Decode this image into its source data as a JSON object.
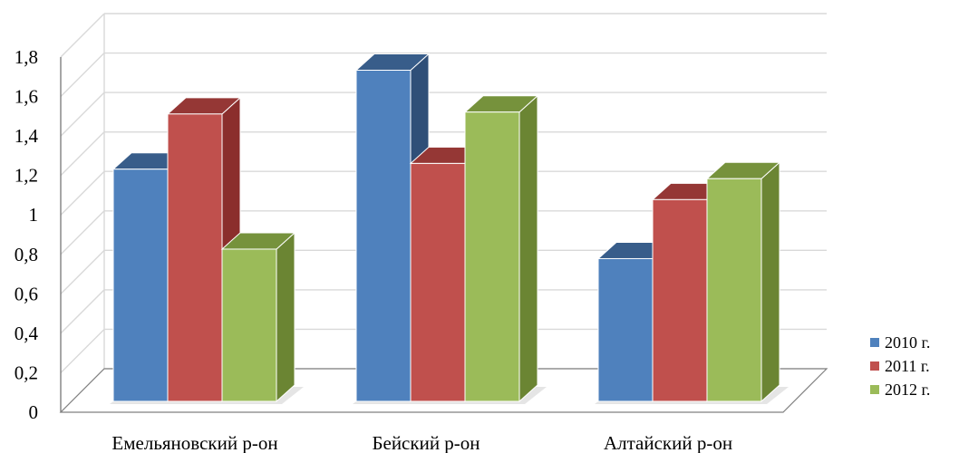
{
  "chart_data": {
    "type": "bar",
    "title": "",
    "xlabel": "",
    "ylabel": "",
    "categories": [
      "Емельяновский р-он",
      "Бейский р-он",
      "Алтайский р-он"
    ],
    "series": [
      {
        "name": "2010 г.",
        "values": [
          1.22,
          1.74,
          0.75
        ],
        "color": "#4f81bd",
        "top_color": "#385d8a",
        "side_color": "#2f4f78"
      },
      {
        "name": "2011 г.",
        "values": [
          1.51,
          1.25,
          1.06
        ],
        "color": "#c0504d",
        "top_color": "#953735",
        "side_color": "#8b2e2c"
      },
      {
        "name": "2012 г.",
        "values": [
          0.8,
          1.52,
          1.17
        ],
        "color": "#9bbb59",
        "top_color": "#76923c",
        "side_color": "#6b8533"
      }
    ],
    "ylim": [
      0,
      1.8
    ],
    "ticks": [
      "0",
      "0,2",
      "0,4",
      "0,6",
      "0,8",
      "1",
      "1,2",
      "1,4",
      "1,6",
      "1,8"
    ],
    "grid": true,
    "legend_position": "right"
  }
}
